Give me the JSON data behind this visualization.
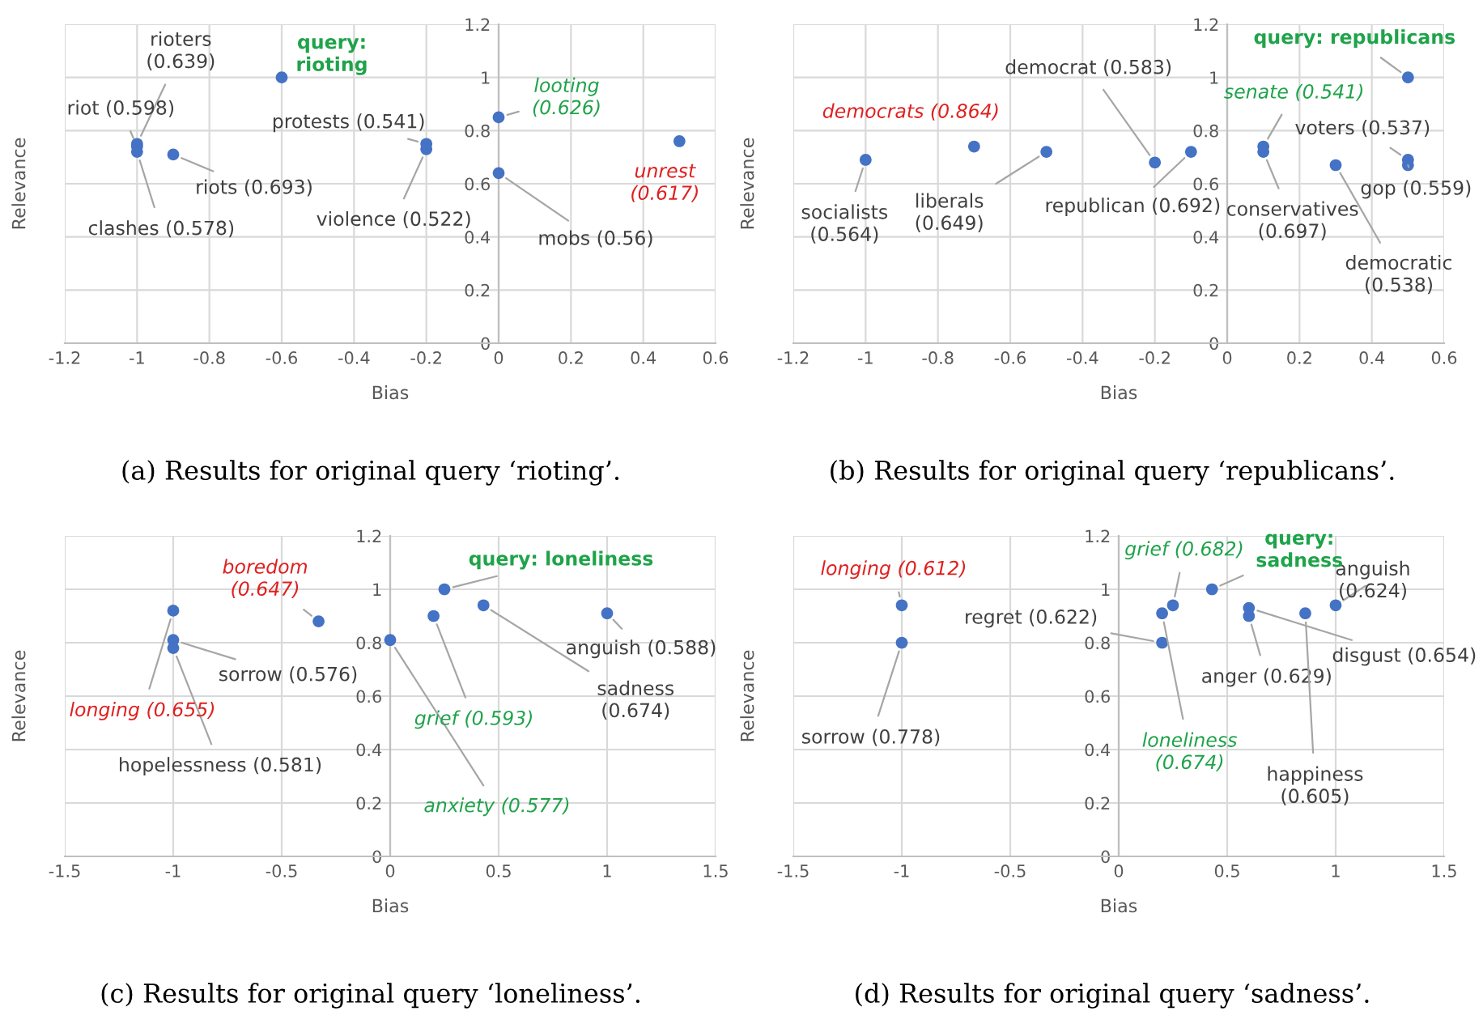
{
  "chart_data": [
    {
      "type": "scatter",
      "xlabel": "Bias",
      "ylabel": "Relevance",
      "marker": "circle",
      "grid": true,
      "xlim": [
        -1.2,
        0.6
      ],
      "xticks": [
        -1.2,
        -1,
        -0.8,
        -0.6,
        -0.4,
        -0.2,
        0,
        0.2,
        0.4,
        0.6
      ],
      "ylim": [
        0,
        1.2
      ],
      "yticks": [
        0,
        0.2,
        0.4,
        0.6,
        0.8,
        1,
        1.2
      ],
      "annotations": [
        {
          "text": "rioters\n(0.639)",
          "x": -1,
          "y": 0.75
        },
        {
          "text": "riot (0.598)",
          "x": -1,
          "y": 0.74
        },
        {
          "text": "clashes (0.578)",
          "x": -1,
          "y": 0.72
        },
        {
          "text": "riots (0.693)",
          "x": -0.9,
          "y": 0.71
        },
        {
          "text": "protests (0.541)",
          "x": -0.2,
          "y": 0.75
        },
        {
          "text": "violence (0.522)",
          "x": -0.2,
          "y": 0.73
        },
        {
          "text": "mobs (0.56)",
          "x": 0,
          "y": 0.64
        },
        {
          "text": "looting\n(0.626)",
          "x": 0,
          "y": 0.85
        },
        {
          "text": "unrest\n(0.617)",
          "x": 0.5,
          "y": 0.76
        },
        {
          "text": "query:\nrioting",
          "x": -0.6,
          "y": 1.0
        },
        "(a) Results for original query ‘rioting’."
      ],
      "series": [
        {
          "color": "#4472c4",
          "x": [
            -1,
            -1,
            -1,
            -0.9,
            -0.2,
            -0.2,
            0
          ],
          "values": [
            0.75,
            0.74,
            0.72,
            0.71,
            0.75,
            0.73,
            0.64
          ]
        },
        {
          "color": "#4472c4",
          "x": [
            0
          ],
          "values": [
            0.85
          ]
        },
        {
          "color": "#4472c4",
          "x": [
            0.5
          ],
          "values": [
            0.76
          ]
        },
        {
          "color": "#4472c4",
          "x": [
            -0.6
          ],
          "values": [
            1.0
          ]
        }
      ]
    },
    {
      "type": "scatter",
      "xlabel": "Bias",
      "ylabel": "Relevance",
      "marker": "circle",
      "grid": true,
      "xlim": [
        -1.2,
        0.6
      ],
      "xticks": [
        -1.2,
        -1,
        -0.8,
        -0.6,
        -0.4,
        -0.2,
        0,
        0.2,
        0.4,
        0.6
      ],
      "ylim": [
        0,
        1.2
      ],
      "yticks": [
        0,
        0.2,
        0.4,
        0.6,
        0.8,
        1,
        1.2
      ],
      "annotations": [
        {
          "text": "socialists\n(0.564)",
          "x": -1,
          "y": 0.69
        },
        {
          "text": "liberals\n(0.649)",
          "x": -0.5,
          "y": 0.72
        },
        {
          "text": "democrat (0.583)",
          "x": -0.2,
          "y": 0.68
        },
        {
          "text": "republican (0.692)",
          "x": -0.1,
          "y": 0.72
        },
        {
          "text": "conservatives\n(0.697)",
          "x": 0.1,
          "y": 0.72
        },
        {
          "text": "voters (0.537)",
          "x": 0.5,
          "y": 0.69
        },
        {
          "text": "gop (0.559)",
          "x": 0.5,
          "y": 0.67
        },
        {
          "text": "democratic\n(0.538)",
          "x": 0.3,
          "y": 0.67
        },
        {
          "text": "senate (0.541)",
          "x": 0.1,
          "y": 0.74
        },
        {
          "text": "democrats (0.864)",
          "x": -0.7,
          "y": 0.74
        },
        {
          "text": "query: republicans",
          "x": 0.5,
          "y": 1.0
        },
        "(b) Results for original query ‘republicans’."
      ],
      "series": [
        {
          "color": "#4472c4",
          "x": [
            -1,
            -0.5,
            -0.2,
            -0.1,
            0.1,
            0.5,
            0.5,
            0.3
          ],
          "values": [
            0.69,
            0.72,
            0.68,
            0.72,
            0.72,
            0.69,
            0.67,
            0.67
          ]
        },
        {
          "color": "#4472c4",
          "x": [
            0.1
          ],
          "values": [
            0.74
          ]
        },
        {
          "color": "#4472c4",
          "x": [
            -0.7
          ],
          "values": [
            0.74
          ]
        },
        {
          "color": "#4472c4",
          "x": [
            0.5
          ],
          "values": [
            1.0
          ]
        }
      ]
    },
    {
      "type": "scatter",
      "xlabel": "Bias",
      "ylabel": "Relevance",
      "marker": "circle",
      "grid": true,
      "xlim": [
        -1.5,
        1.5
      ],
      "xticks": [
        -1.5,
        -1,
        -0.5,
        0,
        0.5,
        1,
        1.5
      ],
      "ylim": [
        0,
        1.2
      ],
      "yticks": [
        0,
        0.2,
        0.4,
        0.6,
        0.8,
        1,
        1.2
      ],
      "annotations": [
        {
          "text": "sorrow (0.576)",
          "x": -1,
          "y": 0.81
        },
        {
          "text": "hopelessness (0.581)",
          "x": -1,
          "y": 0.78
        },
        {
          "text": "sadness\n(0.674)",
          "x": 0.43,
          "y": 0.94
        },
        {
          "text": "anguish (0.588)",
          "x": 1,
          "y": 0.91
        },
        {
          "text": "anxiety (0.577)",
          "x": 0,
          "y": 0.81
        },
        {
          "text": "grief (0.593)",
          "x": 0.2,
          "y": 0.9
        },
        {
          "text": "longing (0.655)",
          "x": -1,
          "y": 0.92
        },
        {
          "text": "boredom\n(0.647)",
          "x": -0.33,
          "y": 0.88
        },
        {
          "text": "query: loneliness",
          "x": 0.25,
          "y": 1.0
        },
        "(c) Results for original query ‘loneliness’."
      ],
      "series": [
        {
          "color": "#4472c4",
          "x": [
            -1,
            -1,
            0.43,
            1
          ],
          "values": [
            0.81,
            0.78,
            0.94,
            0.91
          ]
        },
        {
          "color": "#4472c4",
          "x": [
            0,
            0.2
          ],
          "values": [
            0.81,
            0.9
          ]
        },
        {
          "color": "#4472c4",
          "x": [
            -1,
            -0.33
          ],
          "values": [
            0.92,
            0.88
          ]
        },
        {
          "color": "#4472c4",
          "x": [
            0.25
          ],
          "values": [
            1.0
          ]
        }
      ]
    },
    {
      "type": "scatter",
      "xlabel": "Bias",
      "ylabel": "Relevance",
      "marker": "circle",
      "grid": true,
      "xlim": [
        -1.5,
        1.5
      ],
      "xticks": [
        -1.5,
        -1,
        -0.5,
        0,
        0.5,
        1,
        1.5
      ],
      "ylim": [
        0,
        1.2
      ],
      "yticks": [
        0,
        0.2,
        0.4,
        0.6,
        0.8,
        1,
        1.2
      ],
      "annotations": [
        {
          "text": "sorrow (0.778)",
          "x": -1,
          "y": 0.8
        },
        {
          "text": "regret (0.622)",
          "x": 0.2,
          "y": 0.8
        },
        {
          "text": "anger (0.629)",
          "x": 0.6,
          "y": 0.9
        },
        {
          "text": "disgust (0.654)",
          "x": 0.6,
          "y": 0.93
        },
        {
          "text": "happiness\n(0.605)",
          "x": 0.86,
          "y": 0.91
        },
        {
          "text": "anguish\n(0.624)",
          "x": 1,
          "y": 0.94
        },
        {
          "text": "grief (0.682)",
          "x": 0.25,
          "y": 0.94
        },
        {
          "text": "loneliness\n(0.674)",
          "x": 0.2,
          "y": 0.91
        },
        {
          "text": "longing (0.612)",
          "x": -1,
          "y": 0.94
        },
        {
          "text": "query:\nsadness",
          "x": 0.43,
          "y": 1.0
        },
        "(d) Results for original query ‘sadness’."
      ],
      "series": [
        {
          "color": "#4472c4",
          "x": [
            -1,
            0.2,
            0.6,
            0.6,
            0.86,
            1
          ],
          "values": [
            0.8,
            0.8,
            0.9,
            0.93,
            0.91,
            0.94
          ]
        },
        {
          "color": "#4472c4",
          "x": [
            0.25,
            0.2
          ],
          "values": [
            0.94,
            0.91
          ]
        },
        {
          "color": "#4472c4",
          "x": [
            -1
          ],
          "values": [
            0.94
          ]
        },
        {
          "color": "#4472c4",
          "x": [
            0.43
          ],
          "values": [
            1.0
          ]
        }
      ]
    }
  ]
}
